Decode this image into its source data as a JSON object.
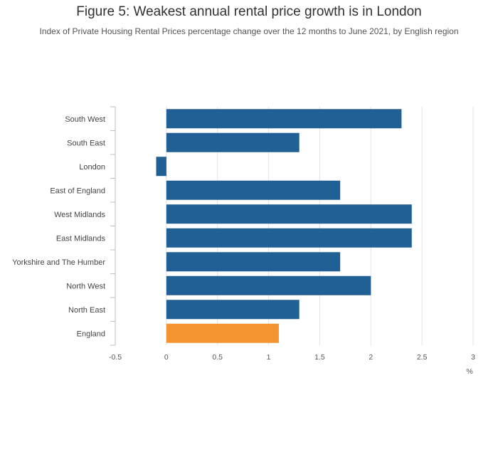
{
  "title": "Figure 5: Weakest annual rental price growth is in London",
  "subtitle": "Index of Private Housing Rental Prices percentage change over the 12 months to June 2021, by English region",
  "colors": {
    "bar": "#206095",
    "highlight": "#f39431",
    "grid": "#e2e2e2",
    "axis": "#bfbfbf"
  },
  "chart_data": {
    "type": "bar",
    "orientation": "horizontal",
    "categories": [
      "South West",
      "South East",
      "London",
      "East of England",
      "West Midlands",
      "East Midlands",
      "Yorkshire and The Humber",
      "North West",
      "North East",
      "England"
    ],
    "values": [
      2.3,
      1.3,
      -0.1,
      1.7,
      2.4,
      2.4,
      1.7,
      2.0,
      1.3,
      1.1
    ],
    "highlight_category": "England",
    "xlim": [
      -0.5,
      3
    ],
    "xticks": [
      "-0.5",
      "0",
      "0.5",
      "1",
      "1.5",
      "2",
      "2.5",
      "3"
    ],
    "xlabel": "%",
    "grid": true
  }
}
